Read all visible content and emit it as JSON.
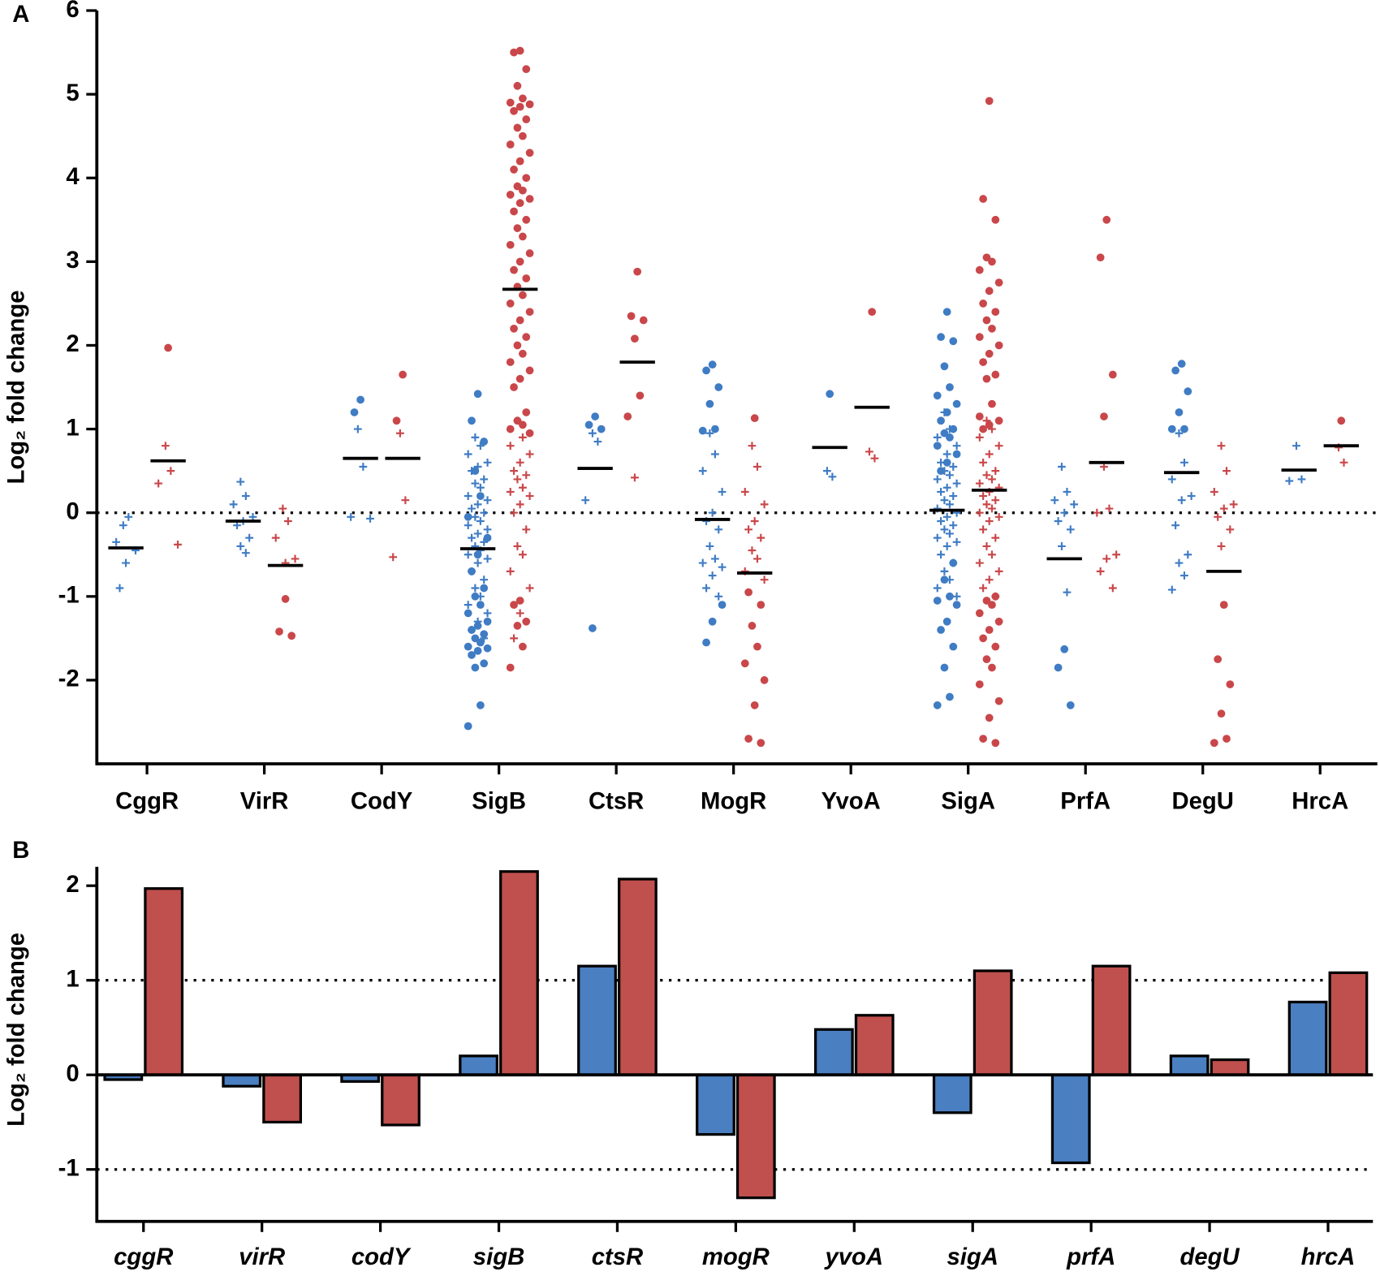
{
  "chart_data": [
    {
      "type": "strip",
      "panel": "A",
      "ylabel": "Log₂ fold change",
      "categories": [
        "CggR",
        "VirR",
        "CodY",
        "SigB",
        "CtsR",
        "MogR",
        "YvoA",
        "SigA",
        "PrfA",
        "DegU",
        "HrcA"
      ],
      "ylim": [
        -3,
        6
      ],
      "yticks": [
        -2,
        -1,
        0,
        1,
        2,
        3,
        4,
        5,
        6
      ],
      "reflines": [
        0
      ],
      "series": [
        {
          "color": "#3f7cc4",
          "groups": [
            {
              "dots": [],
              "crosses": [
                -0.15,
                -0.05,
                -0.35,
                -0.45,
                -0.6,
                -0.9
              ],
              "median": -0.42
            },
            {
              "dots": [],
              "crosses": [
                0.37,
                0.2,
                0.1,
                -0.05,
                -0.1,
                -0.15,
                -0.3,
                -0.4,
                -0.48
              ],
              "median": -0.1
            },
            {
              "dots": [
                1.35,
                1.2
              ],
              "crosses": [
                1.0,
                0.55,
                -0.05,
                -0.07
              ],
              "median": 0.65
            },
            {
              "dots": [
                1.42,
                1.1,
                0.85,
                0.5,
                0.2,
                -0.05,
                -0.3,
                -0.5,
                -0.7,
                -0.9,
                -1.0,
                -1.1,
                -1.2,
                -1.3,
                -1.35,
                -1.4,
                -1.45,
                -1.5,
                -1.55,
                -1.6,
                -1.62,
                -1.65,
                -1.7,
                -1.8,
                -1.85,
                -2.3,
                -2.55
              ],
              "crosses": [
                0.9,
                0.8,
                0.7,
                0.6,
                0.55,
                0.5,
                0.4,
                0.35,
                0.3,
                0.2,
                0.15,
                0.1,
                0.05,
                0,
                -0.05,
                -0.1,
                -0.15,
                -0.2,
                -0.25,
                -0.3,
                -0.35,
                -0.4,
                -0.45,
                -0.5,
                -0.55,
                -0.6,
                -0.7,
                -0.8,
                -0.9,
                -1.0,
                -1.1,
                -1.2,
                -1.3,
                -1.4,
                -1.5
              ],
              "median": -0.43
            },
            {
              "dots": [
                1.15,
                1.05,
                1.0,
                -1.38
              ],
              "crosses": [
                0.95,
                0.85,
                0.15
              ],
              "median": 0.53
            },
            {
              "dots": [
                1.77,
                1.7,
                1.5,
                1.3,
                1.0,
                0.98,
                -1.1,
                -1.3,
                -1.55
              ],
              "crosses": [
                0.95,
                0.7,
                0.5,
                0.25,
                0,
                -0.1,
                -0.2,
                -0.4,
                -0.55,
                -0.6,
                -0.65,
                -0.75,
                -0.9,
                -1.0
              ],
              "median": -0.08
            },
            {
              "dots": [
                1.42
              ],
              "crosses": [
                0.5,
                0.43
              ],
              "median": 0.78
            },
            {
              "dots": [
                2.4,
                2.1,
                2.05,
                1.75,
                1.5,
                1.4,
                1.3,
                1.2,
                1.1,
                1.0,
                0.95,
                0.9,
                0.8,
                0.7,
                0.6,
                0.5,
                -0.6,
                -0.8,
                -1.0,
                -1.05,
                -1.1,
                -1.3,
                -1.4,
                -1.6,
                -1.85,
                -2.2,
                -2.3
              ],
              "crosses": [
                1.2,
                1.0,
                0.9,
                0.8,
                0.7,
                0.6,
                0.55,
                0.5,
                0.45,
                0.4,
                0.35,
                0.3,
                0.25,
                0.2,
                0.15,
                0.1,
                0.05,
                0,
                -0.05,
                -0.1,
                -0.15,
                -0.2,
                -0.25,
                -0.3,
                -0.35,
                -0.4,
                -0.5,
                -0.6,
                -0.7,
                -0.8,
                -0.9,
                -1.0
              ],
              "median": 0.03
            },
            {
              "dots": [
                -1.63,
                -1.85,
                -2.3
              ],
              "crosses": [
                0.55,
                0.25,
                0.15,
                0.1,
                0,
                -0.1,
                -0.2,
                -0.4,
                -0.95
              ],
              "median": -0.55
            },
            {
              "dots": [
                1.78,
                1.7,
                1.45,
                1.2,
                1.0,
                1.0
              ],
              "crosses": [
                0.95,
                0.6,
                0.4,
                0.2,
                0.15,
                -0.15,
                -0.5,
                -0.6,
                -0.75,
                -0.92
              ],
              "median": 0.48
            },
            {
              "dots": [],
              "crosses": [
                0.8,
                0.4,
                0.38
              ],
              "median": 0.51
            }
          ]
        },
        {
          "color": "#c9474a",
          "groups": [
            {
              "dots": [
                1.97
              ],
              "crosses": [
                0.8,
                0.5,
                0.35,
                -0.38
              ],
              "median": 0.62
            },
            {
              "dots": [
                -1.03,
                -1.42,
                -1.47
              ],
              "crosses": [
                0.05,
                -0.1,
                -0.3,
                -0.55,
                -0.6
              ],
              "median": -0.63
            },
            {
              "dots": [
                1.65,
                1.1
              ],
              "crosses": [
                0.95,
                0.15,
                -0.53
              ],
              "median": 0.65
            },
            {
              "dots": [
                5.52,
                5.5,
                5.3,
                5.1,
                4.95,
                4.9,
                4.88,
                4.85,
                4.8,
                4.7,
                4.6,
                4.5,
                4.4,
                4.3,
                4.2,
                4.1,
                4.0,
                3.9,
                3.85,
                3.8,
                3.75,
                3.7,
                3.6,
                3.5,
                3.4,
                3.3,
                3.2,
                3.1,
                3.0,
                2.9,
                2.8,
                2.7,
                2.6,
                2.5,
                2.4,
                2.3,
                2.2,
                2.1,
                2.0,
                1.9,
                1.8,
                1.7,
                1.6,
                1.5,
                1.2,
                1.1,
                1.05,
                1.0,
                0.95,
                -1.05,
                -1.1,
                -1.3,
                -1.35,
                -1.6,
                -1.85
              ],
              "crosses": [
                1.1,
                0.9,
                0.8,
                0.7,
                0.6,
                0.5,
                0.45,
                0.4,
                0.3,
                0.25,
                0.2,
                0.1,
                0,
                -0.2,
                -0.4,
                -0.5,
                -0.7,
                -0.9,
                -1.2,
                -1.5
              ],
              "median": 2.67
            },
            {
              "dots": [
                2.88,
                2.35,
                2.3,
                2.08,
                1.4,
                1.15
              ],
              "crosses": [
                0.42
              ],
              "median": 1.8
            },
            {
              "dots": [
                1.13,
                -0.95,
                -1.1,
                -1.35,
                -1.6,
                -1.8,
                -2.0,
                -2.3,
                -2.7,
                -2.75
              ],
              "crosses": [
                0.8,
                0.55,
                0.25,
                0.1,
                -0.1,
                -0.2,
                -0.3,
                -0.45,
                -0.55,
                -0.7,
                -0.8
              ],
              "median": -0.72
            },
            {
              "dots": [
                2.4
              ],
              "crosses": [
                0.73,
                0.65
              ],
              "median": 1.26
            },
            {
              "dots": [
                4.92,
                3.75,
                3.5,
                3.05,
                3.0,
                2.9,
                2.75,
                2.65,
                2.5,
                2.4,
                2.3,
                2.2,
                2.1,
                2.0,
                1.9,
                1.8,
                1.65,
                1.6,
                1.3,
                1.15,
                1.1,
                1.05,
                1.0,
                -1.0,
                -1.05,
                -1.1,
                -1.2,
                -1.3,
                -1.4,
                -1.5,
                -1.6,
                -1.75,
                -1.85,
                -2.05,
                -2.25,
                -2.45,
                -2.7,
                -2.75
              ],
              "crosses": [
                1.1,
                1.0,
                0.9,
                0.8,
                0.7,
                0.6,
                0.5,
                0.45,
                0.4,
                0.35,
                0.3,
                0.25,
                0.2,
                0.15,
                0.1,
                0.05,
                0,
                -0.05,
                -0.1,
                -0.2,
                -0.3,
                -0.4,
                -0.5,
                -0.6,
                -0.7,
                -0.8,
                -0.9,
                -1.0
              ],
              "median": 0.27
            },
            {
              "dots": [
                3.5,
                3.05,
                1.65,
                1.15
              ],
              "crosses": [
                0.55,
                0.05,
                0,
                -0.5,
                -0.55,
                -0.7,
                -0.9
              ],
              "median": 0.6
            },
            {
              "dots": [
                -1.1,
                -1.75,
                -2.05,
                -2.4,
                -2.7,
                -2.75
              ],
              "crosses": [
                0.8,
                0.5,
                0.25,
                0.1,
                0.05,
                -0.05,
                -0.2,
                -0.4
              ],
              "median": -0.7
            },
            {
              "dots": [
                1.1
              ],
              "crosses": [
                0.78,
                0.6
              ],
              "median": 0.8
            }
          ]
        }
      ]
    },
    {
      "type": "bar",
      "panel": "B",
      "ylabel": "Log₂ fold change",
      "categories": [
        "cggR",
        "virR",
        "codY",
        "sigB",
        "ctsR",
        "mogR",
        "yvoA",
        "sigA",
        "prfA",
        "degU",
        "hrcA"
      ],
      "ylim": [
        -1.55,
        2.2
      ],
      "yticks": [
        -1,
        0,
        1,
        2
      ],
      "reflines": [
        1,
        -1
      ],
      "series": [
        {
          "color": "#4a7fc1",
          "values": [
            -0.05,
            -0.12,
            -0.07,
            0.2,
            1.15,
            -0.63,
            0.48,
            -0.4,
            -0.93,
            0.2,
            0.77
          ]
        },
        {
          "color": "#c0504d",
          "values": [
            1.97,
            -0.5,
            -0.53,
            2.15,
            2.07,
            -1.3,
            0.63,
            1.1,
            1.15,
            0.16,
            1.08
          ]
        }
      ]
    }
  ]
}
